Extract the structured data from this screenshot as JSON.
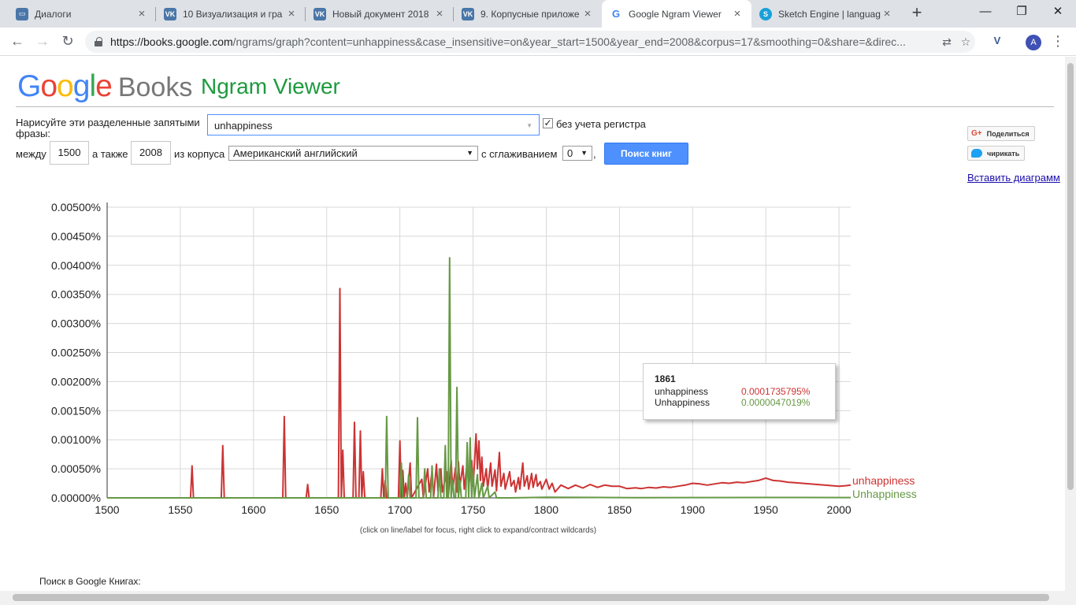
{
  "browser": {
    "tabs": [
      {
        "title": "Диалоги",
        "icon": "chat-icon",
        "color": "#4a76a8",
        "active": false
      },
      {
        "title": "10 Визуализация и гра",
        "icon": "vk-icon",
        "color": "#4a76a8",
        "active": false
      },
      {
        "title": "Новый документ 2018",
        "icon": "vk-icon",
        "color": "#4a76a8",
        "active": false
      },
      {
        "title": "9. Корпусные приложе",
        "icon": "vk-icon",
        "color": "#4a76a8",
        "active": false
      },
      {
        "title": "Google Ngram Viewer",
        "icon": "google-g-icon",
        "color": "#4285f4",
        "active": true
      },
      {
        "title": "Sketch Engine | languag",
        "icon": "sketch-engine-icon",
        "color": "#1aa0d8",
        "active": false
      }
    ],
    "url_host": "https://books.google.com",
    "url_path": "/ngrams/graph?content=unhappiness&case_insensitive=on&year_start=1500&year_end=2008&corpus=17&smoothing=0&share=&direc...",
    "profile_initial": "A"
  },
  "header": {
    "logo_letters": [
      "G",
      "o",
      "o",
      "g",
      "l",
      "e"
    ],
    "logo_books": "Books",
    "title": "Ngram Viewer"
  },
  "form": {
    "prompt_line1": "Нарисуйте эти разделенные запятыми",
    "prompt_line2": "фразы:",
    "query": "unhappiness",
    "case_label": "без учета регистра",
    "case_checked": "✓",
    "between_label": "между",
    "year_start": "1500",
    "and_label": "а также",
    "year_end": "2008",
    "corpus_label": "из корпуса",
    "corpus_value": "Американский английский",
    "smoothing_label": "с сглаживанием",
    "smoothing_value": "0",
    "comma": ",",
    "search_button": "Поиск книг"
  },
  "share": {
    "gplus_mark": "G+",
    "gplus_label": "Поделиться",
    "twitter_label": "чирикать",
    "embed_label": "Вставить диаграмм"
  },
  "chart_data": {
    "type": "line",
    "xlim": [
      1500,
      2008
    ],
    "ylim": [
      0,
      0.005
    ],
    "x_ticks": [
      1500,
      1550,
      1600,
      1650,
      1700,
      1750,
      1800,
      1850,
      1900,
      1950,
      2000
    ],
    "y_ticks": [
      "0.00000%",
      "0.00050%",
      "0.00100%",
      "0.00150%",
      "0.00200%",
      "0.00250%",
      "0.00300%",
      "0.00350%",
      "0.00400%",
      "0.00450%",
      "0.00500%"
    ],
    "y_tick_values": [
      0,
      0.0005,
      0.001,
      0.0015,
      0.002,
      0.0025,
      0.003,
      0.0035,
      0.004,
      0.0045,
      0.005
    ],
    "grid": true,
    "series": [
      {
        "name": "unhappiness",
        "color": "#cc3333",
        "points": [
          [
            1500,
            0
          ],
          [
            1557,
            0
          ],
          [
            1558,
            0.00055
          ],
          [
            1559,
            0
          ],
          [
            1578,
            0
          ],
          [
            1579,
            0.0009
          ],
          [
            1580,
            0
          ],
          [
            1620,
            0
          ],
          [
            1621,
            0.0014
          ],
          [
            1622,
            0
          ],
          [
            1636,
            0
          ],
          [
            1637,
            0.00023
          ],
          [
            1638,
            0
          ],
          [
            1658,
            0
          ],
          [
            1659,
            0.0036
          ],
          [
            1660,
            0
          ],
          [
            1661,
            0.00082
          ],
          [
            1662,
            0
          ],
          [
            1668,
            0
          ],
          [
            1669,
            0.0013
          ],
          [
            1670,
            0
          ],
          [
            1672,
            0
          ],
          [
            1673,
            0.00115
          ],
          [
            1674,
            0
          ],
          [
            1675,
            0.00045
          ],
          [
            1676,
            0
          ],
          [
            1687,
            0
          ],
          [
            1688,
            0.0005
          ],
          [
            1689,
            0
          ],
          [
            1690,
            0.0003
          ],
          [
            1691,
            0
          ],
          [
            1699,
            0
          ],
          [
            1700,
            0.00098
          ],
          [
            1701,
            0
          ],
          [
            1702,
            0.00047
          ],
          [
            1703,
            0
          ],
          [
            1704,
            0.00025
          ],
          [
            1705,
            0
          ],
          [
            1707,
            0.0006
          ],
          [
            1708,
            0
          ],
          [
            1715,
            0.00032
          ],
          [
            1716,
            0
          ],
          [
            1719,
            0.0005
          ],
          [
            1720,
            0.0001
          ],
          [
            1722,
            0.00045
          ],
          [
            1723,
            0
          ],
          [
            1725,
            0.00058
          ],
          [
            1726,
            0.00012
          ],
          [
            1728,
            0.0005
          ],
          [
            1729,
            0.0001
          ],
          [
            1732,
            0.00045
          ],
          [
            1733,
            0
          ],
          [
            1735,
            0.00065
          ],
          [
            1736,
            0.00015
          ],
          [
            1738,
            0.00052
          ],
          [
            1739,
            0.0001
          ],
          [
            1740,
            0.00062
          ],
          [
            1741,
            0.0002
          ],
          [
            1743,
            0.00055
          ],
          [
            1744,
            0.00015
          ],
          [
            1746,
            0.0006
          ],
          [
            1747,
            0.00018
          ],
          [
            1749,
            0.00064
          ],
          [
            1750,
            0.0002
          ],
          [
            1751,
            0.0006
          ],
          [
            1752,
            0.0011
          ],
          [
            1753,
            0.0005
          ],
          [
            1754,
            0.00098
          ],
          [
            1755,
            0.0003
          ],
          [
            1756,
            0.0007
          ],
          [
            1757,
            0.0002
          ],
          [
            1759,
            0.0005
          ],
          [
            1760,
            0.00015
          ],
          [
            1762,
            0.0006
          ],
          [
            1763,
            0.0002
          ],
          [
            1765,
            0.00048
          ],
          [
            1766,
            0.00012
          ],
          [
            1768,
            0.00078
          ],
          [
            1769,
            0.0002
          ],
          [
            1771,
            0.00042
          ],
          [
            1772,
            0.00015
          ],
          [
            1775,
            0.00045
          ],
          [
            1776,
            0.0002
          ],
          [
            1778,
            0.0003
          ],
          [
            1779,
            0.0001
          ],
          [
            1781,
            0.00035
          ],
          [
            1782,
            0.00015
          ],
          [
            1784,
            0.0006
          ],
          [
            1785,
            0.0002
          ],
          [
            1787,
            0.00038
          ],
          [
            1788,
            0.00015
          ],
          [
            1790,
            0.00042
          ],
          [
            1791,
            0.00018
          ],
          [
            1793,
            0.0004
          ],
          [
            1794,
            0.0002
          ],
          [
            1796,
            0.00028
          ],
          [
            1797,
            0.00015
          ],
          [
            1800,
            0.00032
          ],
          [
            1802,
            0.00015
          ],
          [
            1804,
            0.00025
          ],
          [
            1806,
            0.0001
          ],
          [
            1810,
            0.00022
          ],
          [
            1815,
            0.00016
          ],
          [
            1820,
            0.00022
          ],
          [
            1825,
            0.00017
          ],
          [
            1830,
            0.00023
          ],
          [
            1835,
            0.00018
          ],
          [
            1840,
            0.00022
          ],
          [
            1845,
            0.0002
          ],
          [
            1850,
            0.0002
          ],
          [
            1855,
            0.00016
          ],
          [
            1861,
            0.000174
          ],
          [
            1865,
            0.00016
          ],
          [
            1870,
            0.00018
          ],
          [
            1875,
            0.00017
          ],
          [
            1880,
            0.00019
          ],
          [
            1885,
            0.00018
          ],
          [
            1890,
            0.0002
          ],
          [
            1895,
            0.00022
          ],
          [
            1900,
            0.00025
          ],
          [
            1905,
            0.00024
          ],
          [
            1910,
            0.00022
          ],
          [
            1915,
            0.00024
          ],
          [
            1920,
            0.00026
          ],
          [
            1925,
            0.00025
          ],
          [
            1930,
            0.00027
          ],
          [
            1935,
            0.00026
          ],
          [
            1940,
            0.00028
          ],
          [
            1945,
            0.0003
          ],
          [
            1950,
            0.00034
          ],
          [
            1955,
            0.0003
          ],
          [
            1960,
            0.00029
          ],
          [
            1965,
            0.00027
          ],
          [
            1970,
            0.00026
          ],
          [
            1975,
            0.00025
          ],
          [
            1980,
            0.00024
          ],
          [
            1985,
            0.00023
          ],
          [
            1990,
            0.00022
          ],
          [
            1995,
            0.00021
          ],
          [
            2000,
            0.0002
          ],
          [
            2005,
            0.00021
          ],
          [
            2008,
            0.00022
          ]
        ]
      },
      {
        "name": "Unhappiness",
        "color": "#669944",
        "points": [
          [
            1500,
            0
          ],
          [
            1690,
            0
          ],
          [
            1691,
            0.0014
          ],
          [
            1692,
            0
          ],
          [
            1700,
            0
          ],
          [
            1701,
            0.0006
          ],
          [
            1702,
            0
          ],
          [
            1705,
            0
          ],
          [
            1706,
            0.0004
          ],
          [
            1707,
            0
          ],
          [
            1711,
            0
          ],
          [
            1712,
            0.00138
          ],
          [
            1713,
            0
          ],
          [
            1716,
            0
          ],
          [
            1717,
            0.0005
          ],
          [
            1718,
            0
          ],
          [
            1721,
            0
          ],
          [
            1722,
            0.00055
          ],
          [
            1723,
            0
          ],
          [
            1726,
            0
          ],
          [
            1727,
            0.0005
          ],
          [
            1728,
            0
          ],
          [
            1730,
            0
          ],
          [
            1731,
            0.0009
          ],
          [
            1732,
            0
          ],
          [
            1733,
            0
          ],
          [
            1734,
            0.00413
          ],
          [
            1735,
            0
          ],
          [
            1736,
            0.0003
          ],
          [
            1737,
            0
          ],
          [
            1738,
            0
          ],
          [
            1739,
            0.0019
          ],
          [
            1740,
            0
          ],
          [
            1741,
            0.0003
          ],
          [
            1742,
            0
          ],
          [
            1745,
            0
          ],
          [
            1746,
            0.00095
          ],
          [
            1747,
            0
          ],
          [
            1748,
            0.00103
          ],
          [
            1749,
            0
          ],
          [
            1750,
            0.0005
          ],
          [
            1751,
            0
          ],
          [
            1753,
            0.0004
          ],
          [
            1754,
            0
          ],
          [
            1756,
            0.00025
          ],
          [
            1757,
            0
          ],
          [
            1760,
            0.0002
          ],
          [
            1761,
            0
          ],
          [
            1765,
            0.0001
          ],
          [
            1766,
            0
          ],
          [
            1775,
            0
          ],
          [
            1800,
            1e-05
          ],
          [
            1861,
            4.7e-06
          ],
          [
            1900,
            5e-06
          ],
          [
            1950,
            7e-06
          ],
          [
            2008,
            5e-06
          ]
        ]
      }
    ],
    "tooltip": {
      "year": "1861",
      "rows": [
        {
          "name": "unhappiness",
          "value": "0.0001735795%",
          "color": "#cc3333"
        },
        {
          "name": "Unhappiness",
          "value": "0.0000047019%",
          "color": "#669944"
        }
      ]
    },
    "note": "(click on line/label for focus, right click to expand/contract wildcards)"
  },
  "footer": {
    "search_in_books": "Поиск в Google Книгах:"
  }
}
